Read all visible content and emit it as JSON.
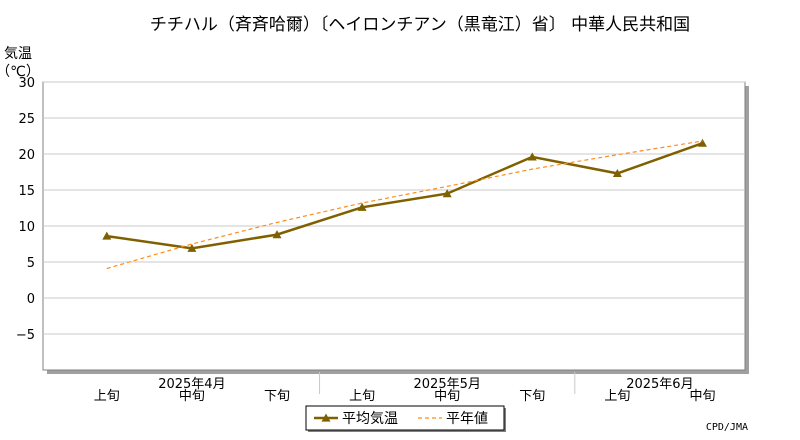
{
  "chart_data": {
    "type": "line",
    "title": "チチハル（斉斉哈爾）〔ヘイロンチアン（黒竜江）省〕 中華人民共和国",
    "ylabel": "気温\n（℃）",
    "ylim": [
      -10,
      30
    ],
    "yticks": [
      30,
      25,
      20,
      15,
      10,
      5,
      0,
      -5
    ],
    "ytick_labels": [
      "30",
      "25",
      "20",
      "15",
      "10",
      "5",
      "0",
      "−5"
    ],
    "categories": [
      "上旬",
      "中旬",
      "下旬",
      "上旬",
      "中旬",
      "下旬",
      "上旬",
      "中旬"
    ],
    "month_groups": [
      {
        "label": "2025年4月",
        "start": 0,
        "end": 2
      },
      {
        "label": "2025年5月",
        "start": 3,
        "end": 5
      },
      {
        "label": "2025年6月",
        "start": 6,
        "end": 7
      }
    ],
    "grid": true,
    "legend_position": "bottom",
    "series": [
      {
        "name": "平均気温",
        "values": [
          8.6,
          6.9,
          8.8,
          12.6,
          14.5,
          19.6,
          17.3,
          21.5
        ],
        "color": "#7f6000",
        "style": "solid",
        "marker": "triangle"
      },
      {
        "name": "平年値",
        "values": [
          4.1,
          7.5,
          10.5,
          13.2,
          15.5,
          17.9,
          19.9,
          21.8
        ],
        "color": "#ff8c1a",
        "style": "dashed",
        "marker": "none"
      }
    ],
    "credit": "CPD/JMA"
  }
}
